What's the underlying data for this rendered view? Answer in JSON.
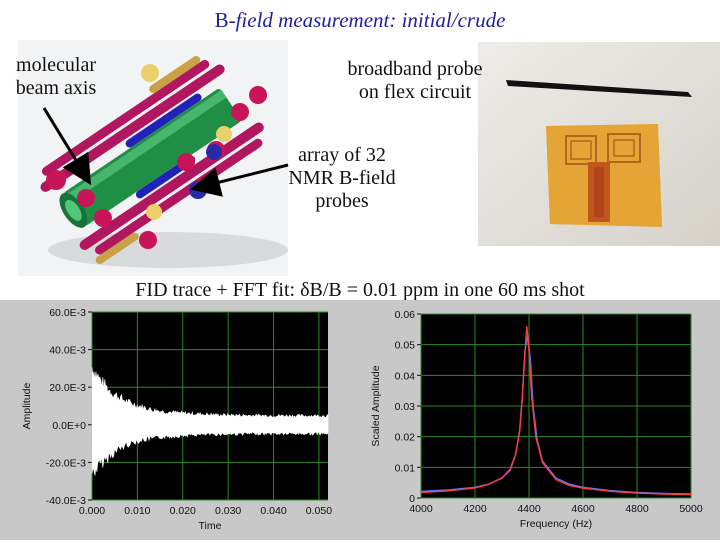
{
  "slide": {
    "title_normal": "B-",
    "title_italic": "field measurement: initial/crude",
    "label_beam_axis_1": "molecular",
    "label_beam_axis_2": "beam axis",
    "label_flex_1": "broadband probe",
    "label_flex_2": "on flex circuit",
    "label_array_1": "array of 32",
    "label_array_2": "NMR B-field",
    "label_array_3": "probes",
    "caption": "FID trace + FFT fit:  δB/B = 0.01 ppm in one 60 ms shot"
  },
  "chart_data": [
    {
      "type": "line",
      "title": "",
      "xlabel": "Time",
      "ylabel": "Amplitude",
      "xlim": [
        0.0,
        0.052
      ],
      "ylim": [
        -0.04,
        0.06
      ],
      "x_ticks": [
        "0.000",
        "0.010",
        "0.020",
        "0.030",
        "0.040",
        "0.050"
      ],
      "x_tick_values": [
        0.0,
        0.01,
        0.02,
        0.03,
        0.04,
        0.05
      ],
      "y_ticks": [
        "-40.0E-3",
        "-20.0E-3",
        "0.0E+0",
        "20.0E-3",
        "40.0E-3",
        "60.0E-3"
      ],
      "y_tick_values": [
        -0.04,
        -0.02,
        0.0,
        0.02,
        0.04,
        0.06
      ],
      "grid": true,
      "series": [
        {
          "description": "FID envelope (upper / lower)",
          "x": [
            0.0,
            0.002,
            0.004,
            0.006,
            0.008,
            0.01,
            0.013,
            0.016,
            0.02,
            0.025,
            0.03,
            0.035,
            0.04,
            0.045,
            0.05,
            0.052
          ],
          "upper": [
            0.036,
            0.027,
            0.021,
            0.017,
            0.014,
            0.012,
            0.0095,
            0.0082,
            0.0072,
            0.0065,
            0.006,
            0.0058,
            0.0057,
            0.0056,
            0.0056,
            0.0056
          ],
          "lower": [
            -0.03,
            -0.024,
            -0.019,
            -0.015,
            -0.012,
            -0.01,
            -0.0085,
            -0.0075,
            -0.0066,
            -0.006,
            -0.0057,
            -0.0055,
            -0.0055,
            -0.0055,
            -0.0055,
            -0.0055
          ]
        }
      ],
      "colors": {
        "background": "#000000",
        "grid": "#2a8a2a",
        "trace": "#ffffff"
      }
    },
    {
      "type": "line",
      "title": "",
      "xlabel": "Frequency (Hz)",
      "ylabel": "Scaled Amplitude",
      "xlim": [
        4000,
        5000
      ],
      "ylim": [
        0,
        0.06
      ],
      "x_ticks": [
        "4000",
        "4200",
        "4400",
        "4600",
        "4800",
        "5000"
      ],
      "x_tick_values": [
        4000,
        4200,
        4400,
        4600,
        4800,
        5000
      ],
      "y_ticks": [
        "0",
        "0.01",
        "0.02",
        "0.03",
        "0.04",
        "0.05",
        "0.06"
      ],
      "y_tick_values": [
        0,
        0.01,
        0.02,
        0.03,
        0.04,
        0.05,
        0.06
      ],
      "grid": true,
      "series": [
        {
          "description": "FFT magnitude (blue)",
          "color": "#5a78ff",
          "x": [
            4000,
            4100,
            4200,
            4250,
            4300,
            4330,
            4350,
            4365,
            4375,
            4385,
            4395,
            4405,
            4415,
            4430,
            4450,
            4500,
            4550,
            4600,
            4700,
            4800,
            4900,
            5000
          ],
          "y": [
            0.0022,
            0.0026,
            0.0035,
            0.0045,
            0.0065,
            0.009,
            0.014,
            0.022,
            0.033,
            0.048,
            0.053,
            0.045,
            0.03,
            0.019,
            0.012,
            0.0065,
            0.0045,
            0.0035,
            0.0024,
            0.0018,
            0.0015,
            0.0013
          ]
        },
        {
          "description": "Lorentzian fit (red)",
          "color": "#ff3b3b",
          "x": [
            4000,
            4100,
            4200,
            4250,
            4300,
            4330,
            4350,
            4365,
            4375,
            4385,
            4392,
            4400,
            4410,
            4425,
            4450,
            4500,
            4550,
            4600,
            4700,
            4800,
            4900,
            5000
          ],
          "y": [
            0.0018,
            0.0023,
            0.0033,
            0.0044,
            0.0066,
            0.0094,
            0.0142,
            0.0215,
            0.0325,
            0.047,
            0.056,
            0.048,
            0.033,
            0.02,
            0.0115,
            0.006,
            0.0041,
            0.0032,
            0.0022,
            0.0016,
            0.0013,
            0.0011
          ]
        }
      ],
      "colors": {
        "background": "#000000",
        "grid": "#2a8a2a",
        "plot_bg": "#ffffff"
      }
    }
  ]
}
